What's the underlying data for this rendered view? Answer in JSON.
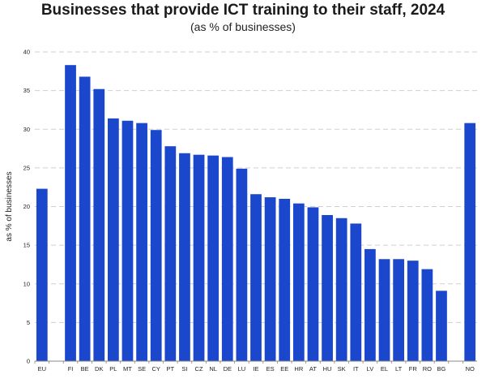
{
  "chart_data": {
    "type": "bar",
    "title": "Businesses that provide ICT training to their staff, 2024",
    "subtitle": "(as % of businesses)",
    "xlabel": "",
    "ylabel": "as % of businesses",
    "ylim": [
      0,
      40
    ],
    "yticks": [
      0,
      5,
      10,
      15,
      20,
      25,
      30,
      35,
      40
    ],
    "yticks_labels": [
      "0",
      "5",
      "10",
      "15",
      "20",
      "25",
      "30",
      "35",
      "40"
    ],
    "grid": true,
    "legend": "none",
    "categories": [
      "EU",
      "",
      "FI",
      "BE",
      "DK",
      "PL",
      "MT",
      "SE",
      "CY",
      "PT",
      "SI",
      "CZ",
      "NL",
      "DE",
      "LU",
      "IE",
      "ES",
      "EE",
      "HR",
      "AT",
      "HU",
      "SK",
      "IT",
      "LV",
      "EL",
      "LT",
      "FR",
      "RO",
      "BG",
      "",
      "NO"
    ],
    "values": [
      22.3,
      null,
      38.3,
      36.8,
      35.2,
      31.4,
      31.1,
      30.8,
      29.9,
      27.8,
      26.9,
      26.7,
      26.6,
      26.4,
      24.9,
      21.6,
      21.2,
      21.0,
      20.4,
      19.9,
      18.9,
      18.5,
      17.8,
      14.5,
      13.2,
      13.2,
      13.0,
      11.9,
      9.1,
      null,
      30.8
    ]
  },
  "colors": {
    "bar": "#1a47cc",
    "grid": "#cfcfcf",
    "axis": "#888888"
  }
}
